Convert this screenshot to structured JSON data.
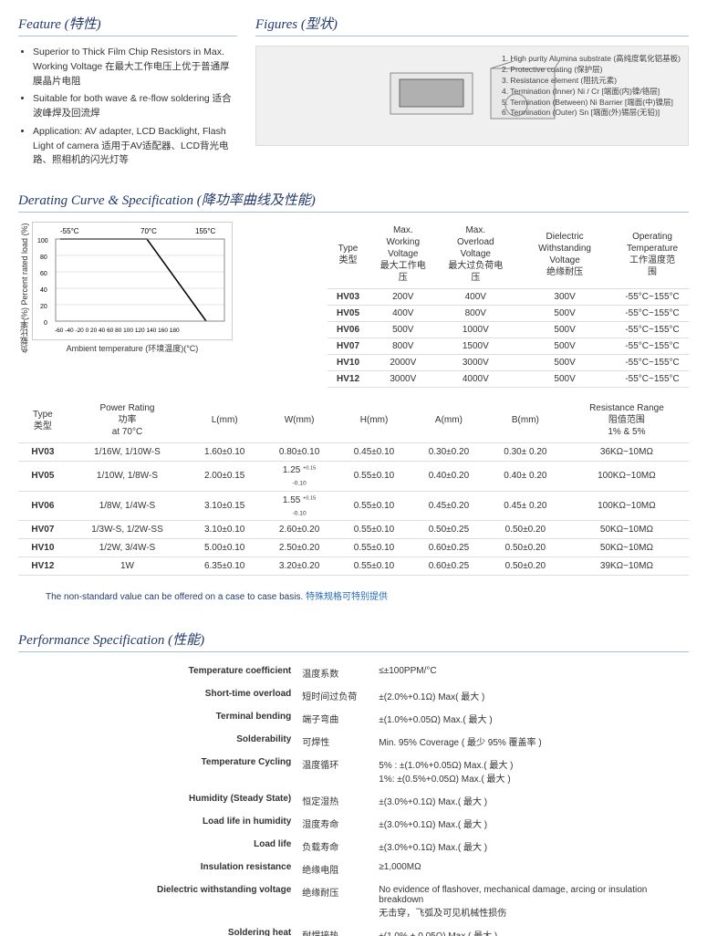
{
  "sections": {
    "feature": "Feature (特性)",
    "figures": "Figures (型状)",
    "derating": "Derating Curve & Specification (降功率曲线及性能)",
    "performance": "Performance Specification (性能)"
  },
  "features": [
    "Superior to Thick Film Chip Resistors in Max. Working Voltage  在最大工作电压上优于普通厚膜晶片电阻",
    "Suitable for both wave & re-flow soldering 适合波峰焊及回流焊",
    "Application: AV adapter, LCD Backlight, Flash Light of camera 适用于AV适配器、LCD背光电路、照相机的闪光灯等"
  ],
  "figure_legend": [
    "1. High purity Alumina substrate (高纯度氧化铝基板)",
    "2. Protective coating (保护层)",
    "3. Resistance element (阻抗元素)",
    "4. Termination (Inner) Ni / Cr [端面(内)镍/铬层]",
    "5. Termination (Between) Ni Barrier [端面(中)镍层]",
    "6. Termination (Outer) Sn [端面(外)锡层(无铅)]"
  ],
  "chart": {
    "title_y_cn": "负载比率(%)",
    "title_y_en": "Percent rated load (%)",
    "title_x": "Ambient temperature (环境温度)(°C)",
    "marks": [
      "-55°C",
      "70°C",
      "155°C"
    ],
    "xticks": "-60 -40 -20 0 20 40 60 80 100 120 140 160 180",
    "yticks": [
      "100",
      "80",
      "60",
      "40",
      "20",
      "0"
    ]
  },
  "table1": {
    "headers": [
      "Type\n类型",
      "Max. Working\nVoltage\n最大工作电压",
      "Max. Overload\nVoltage\n最大过负荷电压",
      "Dielectric Withstanding\nVoltage\n绝缘耐压",
      "Operating\nTemperature\n工作温度范围"
    ],
    "rows": [
      [
        "HV03",
        "200V",
        "400V",
        "300V",
        "-55°C~155°C"
      ],
      [
        "HV05",
        "400V",
        "800V",
        "500V",
        "-55°C~155°C"
      ],
      [
        "HV06",
        "500V",
        "1000V",
        "500V",
        "-55°C~155°C"
      ],
      [
        "HV07",
        "800V",
        "1500V",
        "500V",
        "-55°C~155°C"
      ],
      [
        "HV10",
        "2000V",
        "3000V",
        "500V",
        "-55°C~155°C"
      ],
      [
        "HV12",
        "3000V",
        "4000V",
        "500V",
        "-55°C~155°C"
      ]
    ]
  },
  "table2": {
    "headers": [
      "Type\n类型",
      "Power Rating\n功率\nat 70°C",
      "L(mm)",
      "W(mm)",
      "H(mm)",
      "A(mm)",
      "B(mm)",
      "Resistance Range\n阻值范围\n1% & 5%"
    ],
    "rows": [
      [
        "HV03",
        "1/16W, 1/10W-S",
        "1.60±0.10",
        "0.80±0.10",
        "0.45±0.10",
        "0.30±0.20",
        "0.30± 0.20",
        "36KΩ~10MΩ"
      ],
      [
        "HV05",
        "1/10W, 1/8W-S",
        "2.00±0.15",
        "1.25 +0.15 -0.10",
        "0.55±0.10",
        "0.40±0.20",
        "0.40± 0.20",
        "100KΩ~10MΩ"
      ],
      [
        "HV06",
        "1/8W, 1/4W-S",
        "3.10±0.15",
        "1.55 +0.15 -0.10",
        "0.55±0.10",
        "0.45±0.20",
        "0.45± 0.20",
        "100KΩ~10MΩ"
      ],
      [
        "HV07",
        "1/3W-S, 1/2W-SS",
        "3.10±0.10",
        "2.60±0.20",
        "0.55±0.10",
        "0.50±0.25",
        "0.50±0.20",
        "50KΩ~10MΩ"
      ],
      [
        "HV10",
        "1/2W, 3/4W-S",
        "5.00±0.10",
        "2.50±0.20",
        "0.55±0.10",
        "0.60±0.25",
        "0.50±0.20",
        "50KΩ~10MΩ"
      ],
      [
        "HV12",
        "1W",
        "6.35±0.10",
        "3.20±0.20",
        "0.55±0.10",
        "0.60±0.25",
        "0.50±0.20",
        "39KΩ~10MΩ"
      ]
    ]
  },
  "footnote": {
    "en": "The non-standard value can be offered on a case to case basis. ",
    "cn": "特殊规格可特别提供"
  },
  "perf": {
    "rows": [
      {
        "en": "Temperature coefficient",
        "cn": "温度系数",
        "val": "≤±100PPM/°C"
      },
      {
        "en": "Short-time overload",
        "cn": "短时间过负荷",
        "val": "±(2.0%+0.1Ω) Max( 最大 )"
      },
      {
        "en": "Terminal bending",
        "cn": "端子弯曲",
        "val": "±(1.0%+0.05Ω) Max.( 最大 )"
      },
      {
        "en": "Solderability",
        "cn": "可焊性",
        "val": "Min. 95% Coverage ( 最少 95% 覆盖率 )"
      },
      {
        "en": "Temperature Cycling",
        "cn": "温度循环",
        "val": "5% : ±(1.0%+0.05Ω) Max.( 最大 )\n1%: ±(0.5%+0.05Ω) Max.( 最大 )"
      },
      {
        "en": "Humidity (Steady State)",
        "cn": "恒定湿热",
        "val": "±(3.0%+0.1Ω) Max.( 最大 )"
      },
      {
        "en": "Load life in humidity",
        "cn": "湿度寿命",
        "val": "±(3.0%+0.1Ω) Max.( 最大 )"
      },
      {
        "en": "Load life",
        "cn": "负载寿命",
        "val": "±(3.0%+0.1Ω) Max.( 最大 )"
      },
      {
        "en": "Insulation resistance",
        "cn": "绝缘电阻",
        "val": "≥1,000MΩ"
      },
      {
        "en": "Dielectric withstanding voltage",
        "cn": "绝缘耐压",
        "val": "No evidence of flashover, mechanical damage, arcing or insulation breakdown\n无击穿，飞弧及可见机械性损伤"
      },
      {
        "en": "Soldering heat",
        "cn": "耐焊接热",
        "val": "±(1.0% + 0.05Ω) Max.( 最大 )"
      }
    ]
  }
}
